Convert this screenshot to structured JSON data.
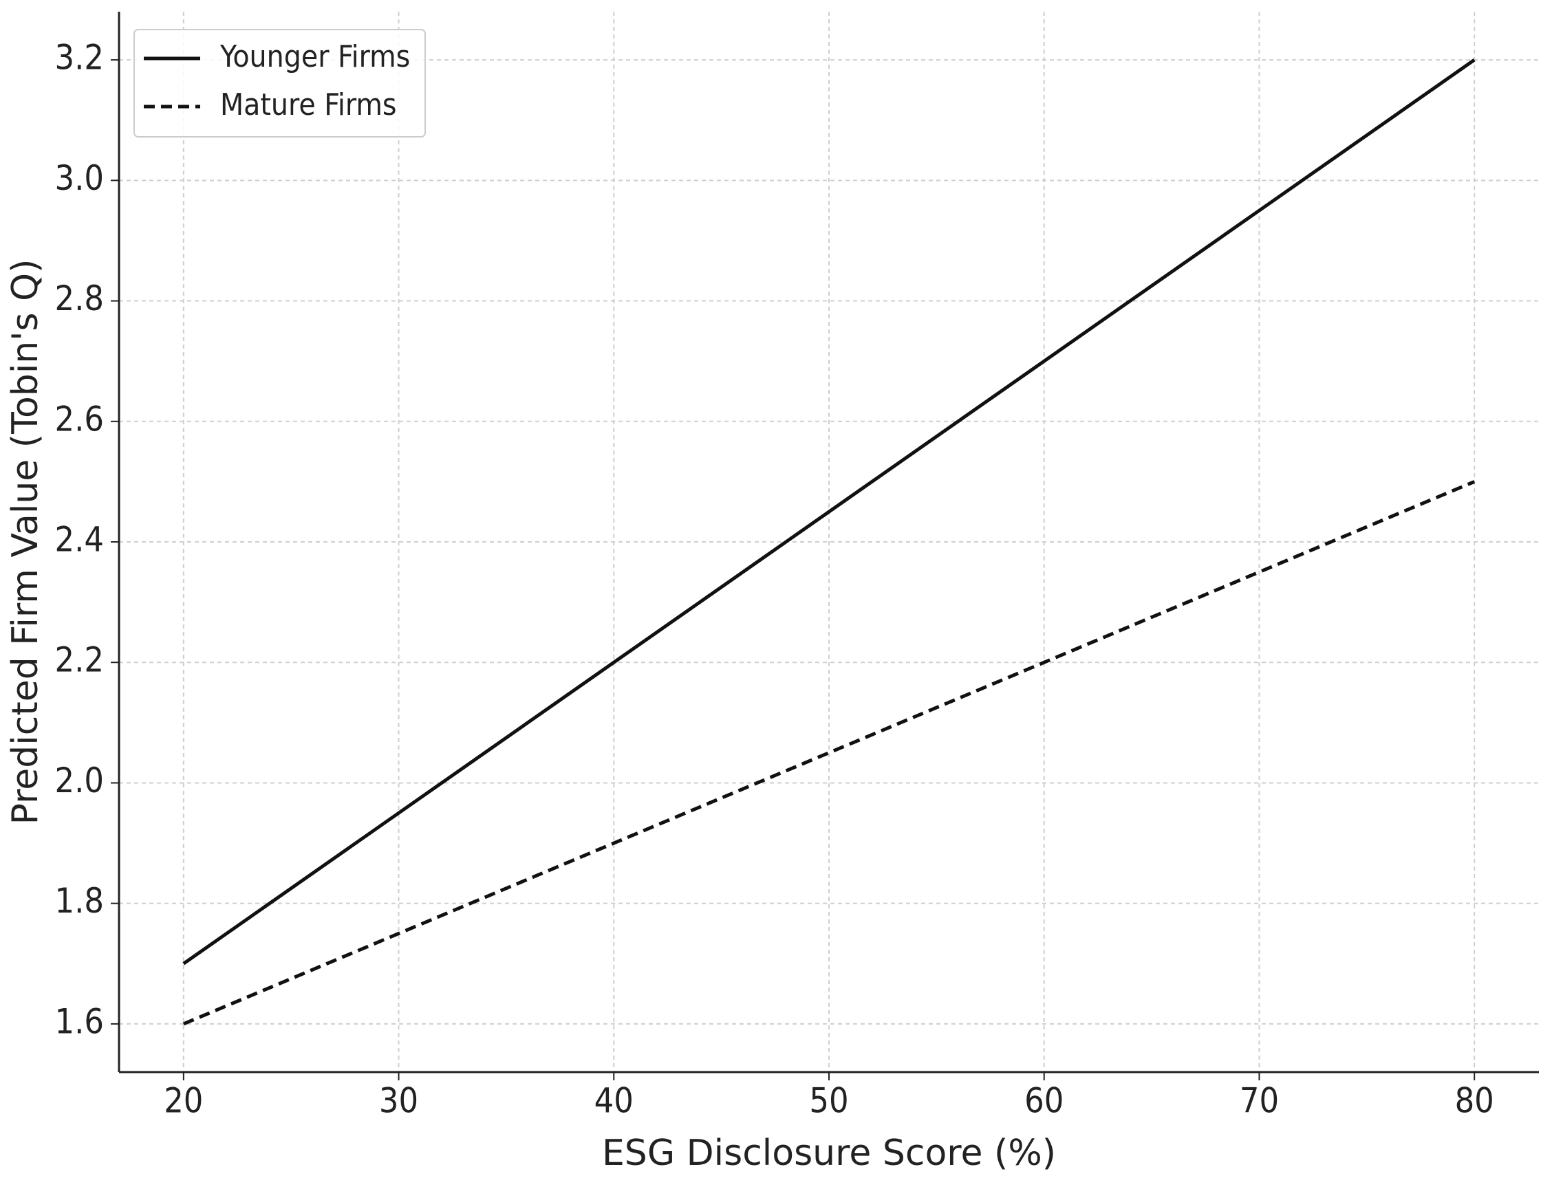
{
  "chart_data": {
    "type": "line",
    "x_label": "ESG Disclosure Score (%)",
    "y_label": "Predicted Firm Value (Tobin's Q)",
    "x": [
      20,
      30,
      40,
      50,
      60,
      70,
      80
    ],
    "series": [
      {
        "name": "Younger Firms",
        "color": "#111111",
        "linestyle": "solid",
        "values": [
          1.7,
          1.95,
          2.2,
          2.45,
          2.7,
          2.95,
          3.2
        ]
      },
      {
        "name": "Mature Firms",
        "color": "#111111",
        "linestyle": "dashed",
        "values": [
          1.6,
          1.75,
          1.9,
          2.05,
          2.2,
          2.35,
          2.5
        ]
      }
    ],
    "xlim": [
      17,
      83
    ],
    "ylim": [
      1.52,
      3.28
    ],
    "xticks": [
      20,
      30,
      40,
      50,
      60,
      70,
      80
    ],
    "yticks": [
      1.6,
      1.8,
      {
        "value": 2,
        "label": "2.0"
      },
      2.2,
      2.4,
      2.6,
      2.8,
      {
        "value": 3,
        "label": "3.0"
      },
      3.2
    ],
    "grid": true,
    "legend_loc": "upper left"
  }
}
